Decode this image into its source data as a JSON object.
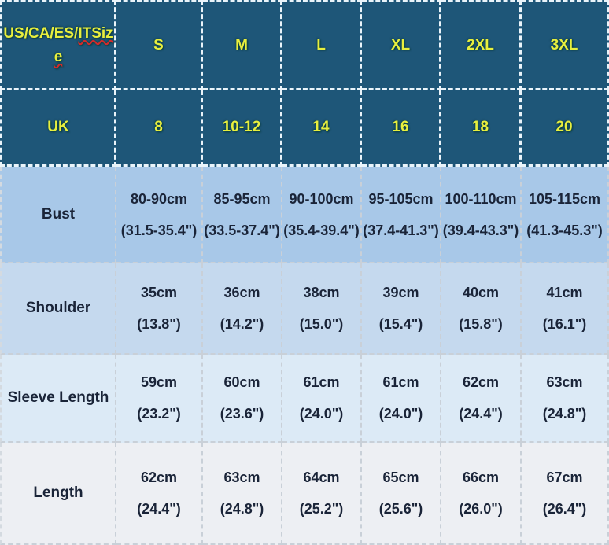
{
  "colors": {
    "header_bg": "#1e5678",
    "header_text": "#e8ef3e",
    "header_border": "#eaf4fa",
    "body_text": "#1a2438",
    "body_border": "#c9d0d8",
    "row_bust_bg": "#a8c8e8",
    "row_shoulder_bg": "#c5d9ee",
    "row_sleeve_bg": "#dceaf6",
    "row_length_bg": "#edeff3",
    "spellcheck_underline": "#d42a2a"
  },
  "chart_data": {
    "type": "table",
    "header_rows": [
      {
        "label": "US/CA/ES/ITSize",
        "label_prefix": "US/CA/ES/",
        "label_misspelled_1": "ITSiz",
        "label_misspelled_2": "e",
        "values": [
          "S",
          "M",
          "L",
          "XL",
          "2XL",
          "3XL"
        ]
      },
      {
        "label": "UK",
        "values": [
          "8",
          "10-12",
          "14",
          "16",
          "18",
          "20"
        ]
      }
    ],
    "measurement_rows": [
      {
        "label": "Bust",
        "values": [
          {
            "cm": "80-90cm",
            "in": "(31.5-35.4\")"
          },
          {
            "cm": "85-95cm",
            "in": "(33.5-37.4\")"
          },
          {
            "cm": "90-100cm",
            "in": "(35.4-39.4\")"
          },
          {
            "cm": "95-105cm",
            "in": "(37.4-41.3\")"
          },
          {
            "cm": "100-110cm",
            "in": "(39.4-43.3\")"
          },
          {
            "cm": "105-115cm",
            "in": "(41.3-45.3\")"
          }
        ]
      },
      {
        "label": "Shoulder",
        "values": [
          {
            "cm": "35cm",
            "in": "(13.8\")"
          },
          {
            "cm": "36cm",
            "in": "(14.2\")"
          },
          {
            "cm": "38cm",
            "in": "(15.0\")"
          },
          {
            "cm": "39cm",
            "in": "(15.4\")"
          },
          {
            "cm": "40cm",
            "in": "(15.8\")"
          },
          {
            "cm": "41cm",
            "in": "(16.1\")"
          }
        ]
      },
      {
        "label": "Sleeve Length",
        "values": [
          {
            "cm": "59cm",
            "in": "(23.2\")"
          },
          {
            "cm": "60cm",
            "in": "(23.6\")"
          },
          {
            "cm": "61cm",
            "in": "(24.0\")"
          },
          {
            "cm": "61cm",
            "in": "(24.0\")"
          },
          {
            "cm": "62cm",
            "in": "(24.4\")"
          },
          {
            "cm": "63cm",
            "in": "(24.8\")"
          }
        ]
      },
      {
        "label": "Length",
        "values": [
          {
            "cm": "62cm",
            "in": "(24.4\")"
          },
          {
            "cm": "63cm",
            "in": "(24.8\")"
          },
          {
            "cm": "64cm",
            "in": "(25.2\")"
          },
          {
            "cm": "65cm",
            "in": "(25.6\")"
          },
          {
            "cm": "66cm",
            "in": "(26.0\")"
          },
          {
            "cm": "67cm",
            "in": "(26.4\")"
          }
        ]
      }
    ]
  }
}
